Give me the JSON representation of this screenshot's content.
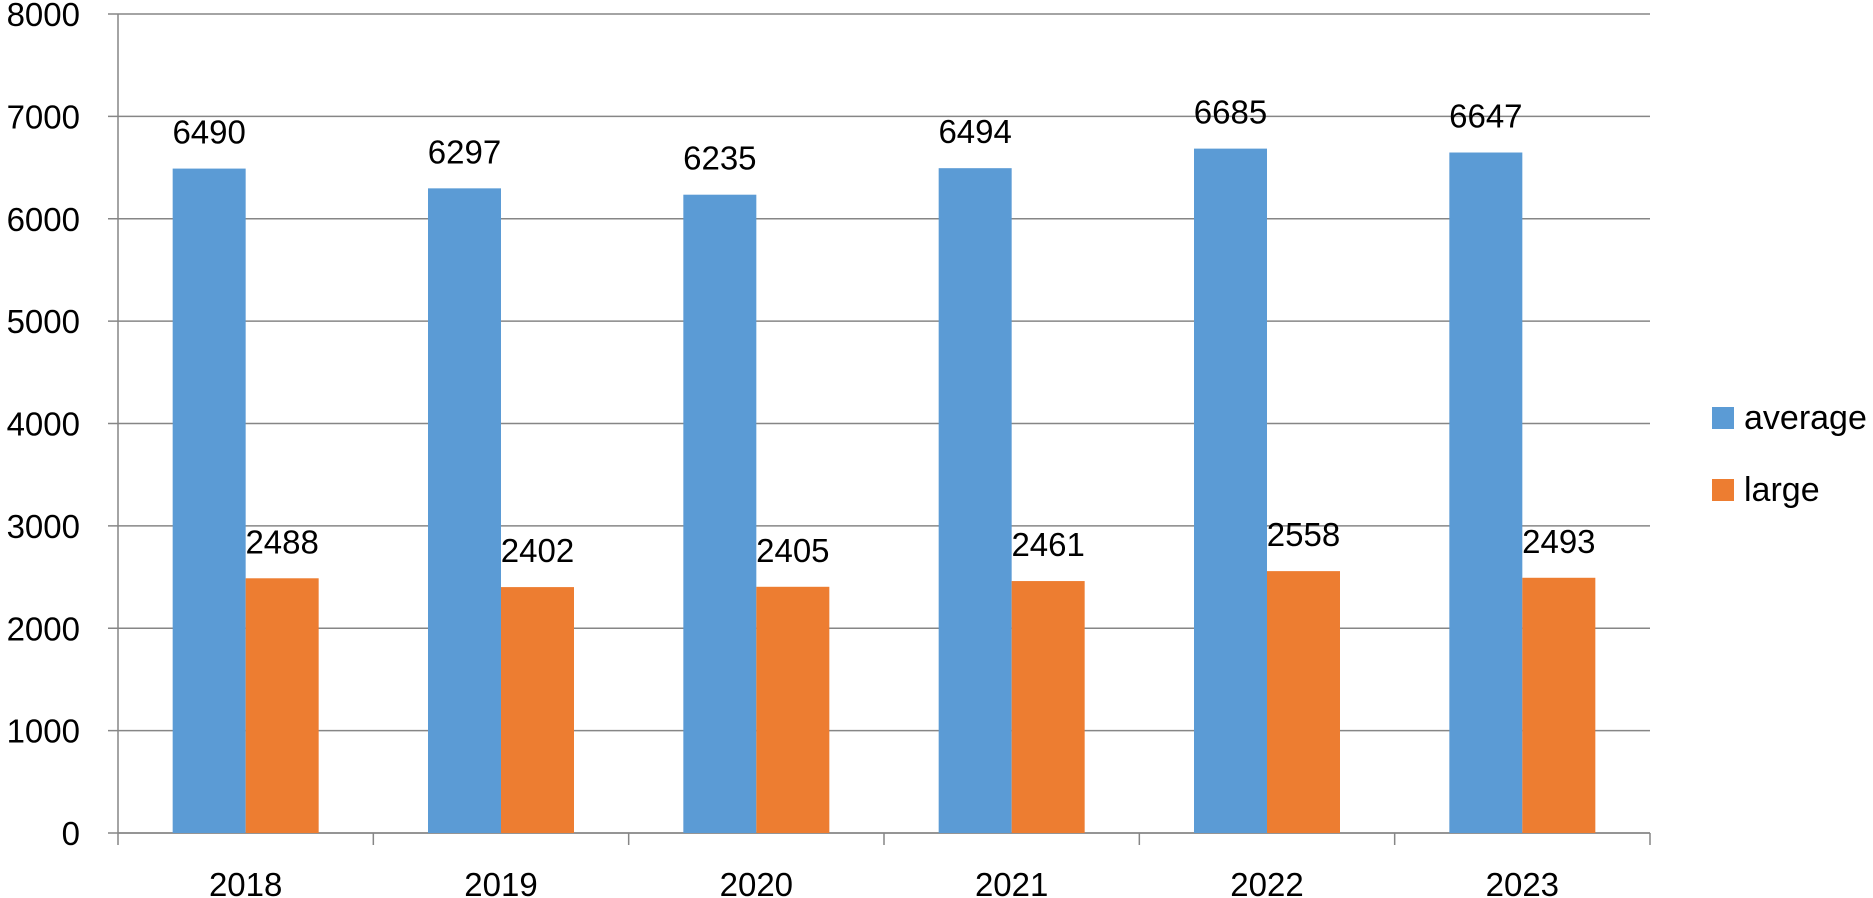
{
  "chart_data": {
    "type": "bar",
    "categories": [
      "2018",
      "2019",
      "2020",
      "2021",
      "2022",
      "2023"
    ],
    "series": [
      {
        "name": "average",
        "values": [
          6490,
          6297,
          6235,
          6494,
          6685,
          6647
        ],
        "color": "#5B9BD5"
      },
      {
        "name": "large",
        "values": [
          2488,
          2402,
          2405,
          2461,
          2558,
          2493
        ],
        "color": "#ED7D31"
      }
    ],
    "ylim": [
      0,
      8000
    ],
    "yticks": [
      0,
      1000,
      2000,
      3000,
      4000,
      5000,
      6000,
      7000,
      8000
    ],
    "grid": true,
    "legend": "right",
    "data_labels": true
  }
}
